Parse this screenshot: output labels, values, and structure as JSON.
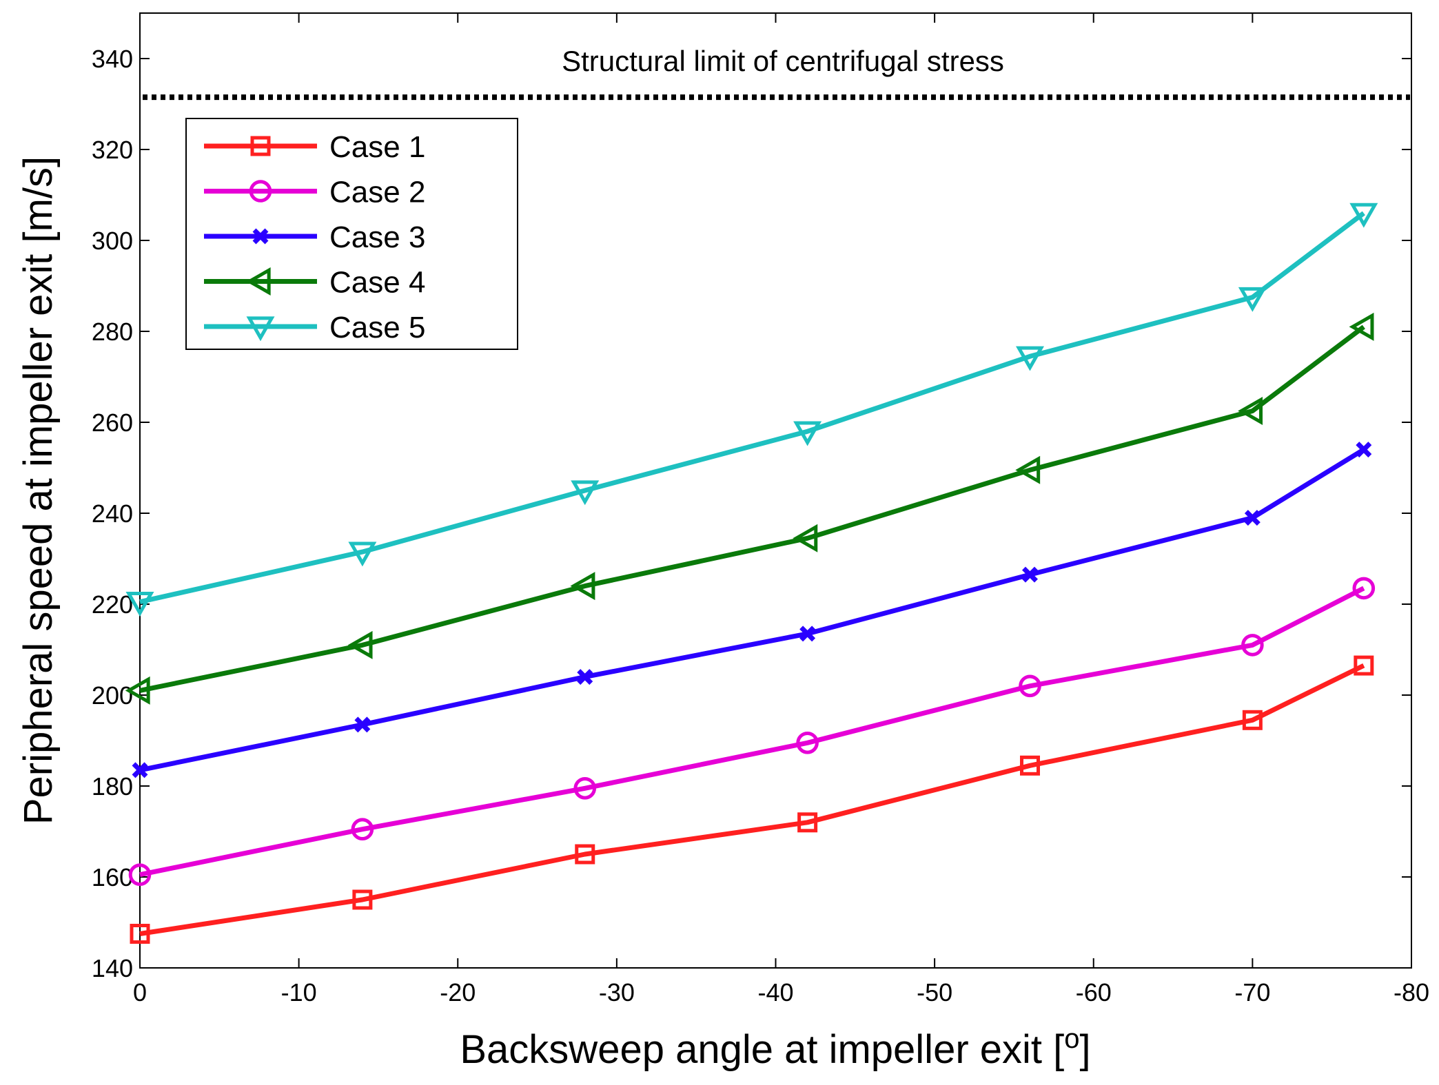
{
  "chart_data": {
    "type": "line",
    "title": "",
    "xlabel": "Backsweep angle at impeller exit [",
    "xlabel_superscript": "o",
    "xlabel_suffix": "]",
    "ylabel": "Peripheral speed at impeller exit [m/s]",
    "xlim": [
      0,
      -80
    ],
    "ylim": [
      140,
      350
    ],
    "xticks": [
      0,
      -10,
      -20,
      -30,
      -40,
      -50,
      -60,
      -70,
      -80
    ],
    "xtick_labels": [
      "0",
      "-10",
      "-20",
      "-30",
      "-40",
      "-50",
      "-60",
      "-70",
      "-80"
    ],
    "yticks": [
      140,
      160,
      180,
      200,
      220,
      240,
      260,
      280,
      300,
      320,
      340
    ],
    "ytick_labels": [
      "140",
      "160",
      "180",
      "200",
      "220",
      "240",
      "260",
      "280",
      "300",
      "320",
      "340"
    ],
    "grid": false,
    "legend_position": "top-left",
    "x": [
      0,
      -14,
      -28,
      -42,
      -56,
      -70,
      -77
    ],
    "series": [
      {
        "name": "Case 1",
        "color": "#ff2020",
        "marker": "square",
        "values": [
          147.5,
          155,
          165,
          172,
          184.5,
          194.5,
          206.5
        ]
      },
      {
        "name": "Case 2",
        "color": "#e600d6",
        "marker": "circle",
        "values": [
          160.5,
          170.5,
          179.5,
          189.5,
          202,
          211,
          223.5
        ]
      },
      {
        "name": "Case 3",
        "color": "#2a00ff",
        "marker": "x",
        "values": [
          183.5,
          193.5,
          204,
          213.5,
          226.5,
          239,
          254
        ]
      },
      {
        "name": "Case 4",
        "color": "#0a7a0a",
        "marker": "triangle-left",
        "values": [
          201,
          211,
          224,
          234.5,
          249.5,
          262.5,
          281
        ]
      },
      {
        "name": "Case 5",
        "color": "#1ec0c0",
        "marker": "triangle-down",
        "values": [
          220.5,
          231.5,
          245,
          258,
          274.5,
          287.5,
          306
        ]
      }
    ],
    "reference_line": {
      "value": 331.5,
      "style": "dotted",
      "color": "#000000",
      "label": "Structural limit of centrifugal stress"
    }
  }
}
